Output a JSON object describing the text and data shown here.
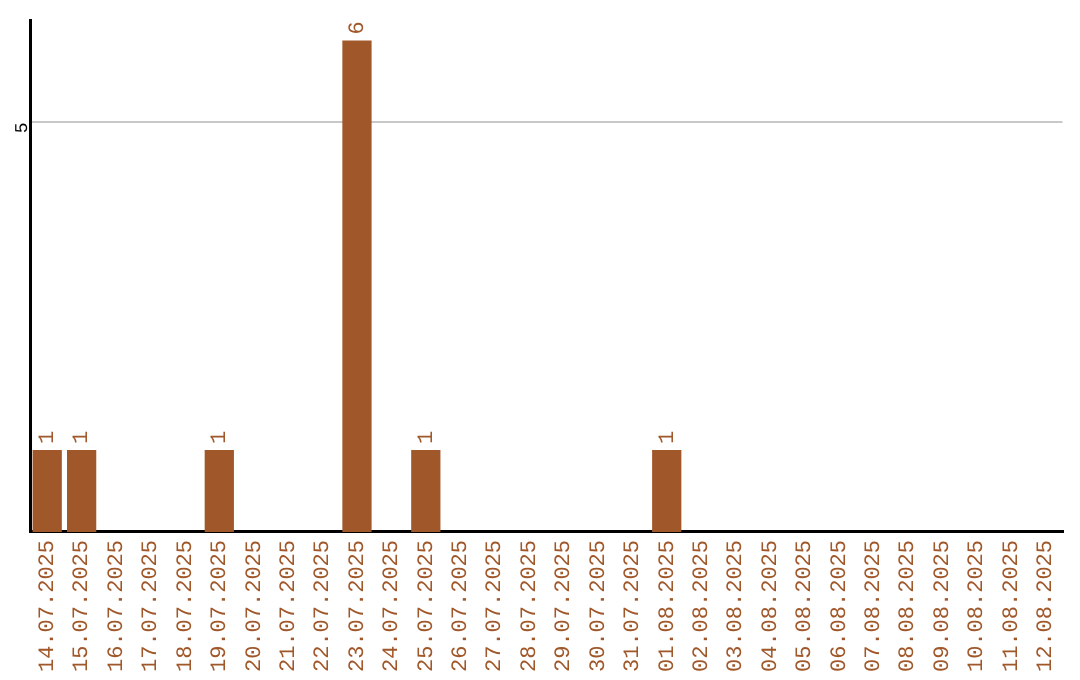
{
  "chart_data": {
    "type": "bar",
    "categories": [
      "14.07.2025",
      "15.07.2025",
      "16.07.2025",
      "17.07.2025",
      "18.07.2025",
      "19.07.2025",
      "20.07.2025",
      "21.07.2025",
      "22.07.2025",
      "23.07.2025",
      "24.07.2025",
      "25.07.2025",
      "26.07.2025",
      "27.07.2025",
      "28.07.2025",
      "29.07.2025",
      "30.07.2025",
      "31.07.2025",
      "01.08.2025",
      "02.08.2025",
      "03.08.2025",
      "04.08.2025",
      "05.08.2025",
      "06.08.2025",
      "07.08.2025",
      "08.08.2025",
      "09.08.2025",
      "10.08.2025",
      "11.08.2025",
      "12.08.2025"
    ],
    "values": [
      1,
      1,
      0,
      0,
      0,
      1,
      0,
      0,
      0,
      6,
      0,
      1,
      0,
      0,
      0,
      0,
      0,
      0,
      1,
      0,
      0,
      0,
      0,
      0,
      0,
      0,
      0,
      0,
      0,
      0
    ],
    "value_labels": [
      "1",
      "1",
      null,
      null,
      null,
      "1",
      null,
      null,
      null,
      "6",
      null,
      "1",
      null,
      null,
      null,
      null,
      null,
      null,
      "1",
      null,
      null,
      null,
      null,
      null,
      null,
      null,
      null,
      null,
      null,
      null
    ],
    "color": "#a0582a",
    "ylim": [
      0,
      6.25
    ],
    "yticks": [
      5
    ],
    "grid": "y",
    "legend": false
  }
}
